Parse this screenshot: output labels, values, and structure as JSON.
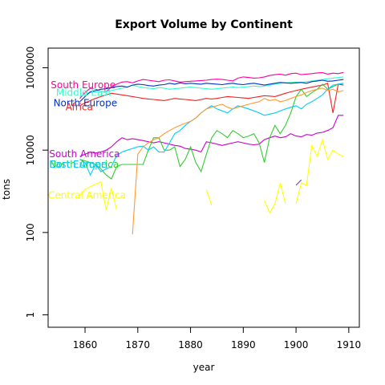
{
  "chart_data": {
    "type": "line",
    "title": "Export Volume by Continent",
    "xlabel": "year",
    "ylabel": "tons",
    "y_scale": "log",
    "xlim": [
      1853,
      1912
    ],
    "ylim": [
      0.5,
      3000000
    ],
    "x_ticks": [
      1860,
      1870,
      1880,
      1890,
      1900,
      1910
    ],
    "y_ticks": [
      {
        "value": 1,
        "label": "1"
      },
      {
        "value": 100,
        "label": "100"
      },
      {
        "value": 10000,
        "label": "10000"
      },
      {
        "value": 1000000,
        "label": "1000000"
      }
    ],
    "grid": false,
    "legend": "direct labels at left of each series",
    "series": [
      {
        "name": "South Europe",
        "color": "#FF0099",
        "label_year": 1853.5,
        "label_value": 380000,
        "x": [
          1859,
          1860,
          1861,
          1862,
          1863,
          1864,
          1865,
          1866,
          1867,
          1868,
          1869,
          1870,
          1871,
          1872,
          1873,
          1874,
          1875,
          1876,
          1877,
          1878,
          1879,
          1880,
          1881,
          1882,
          1883,
          1884,
          1885,
          1886,
          1887,
          1888,
          1889,
          1890,
          1891,
          1892,
          1893,
          1894,
          1895,
          1896,
          1897,
          1898,
          1899,
          1900,
          1901,
          1902,
          1903,
          1904,
          1905,
          1906,
          1907,
          1908,
          1909
        ],
        "y": [
          180000,
          250000,
          320000,
          300000,
          270000,
          260000,
          340000,
          400000,
          450000,
          460000,
          430000,
          480000,
          520000,
          500000,
          480000,
          460000,
          500000,
          510000,
          480000,
          450000,
          460000,
          470000,
          480000,
          490000,
          500000,
          520000,
          530000,
          520000,
          500000,
          480000,
          560000,
          600000,
          580000,
          560000,
          570000,
          600000,
          650000,
          680000,
          700000,
          660000,
          720000,
          740000,
          680000,
          700000,
          720000,
          750000,
          760000,
          700000,
          740000,
          720000,
          770000
        ]
      },
      {
        "name": "Middle East",
        "color": "#33FFCC",
        "label_year": 1854.5,
        "label_value": 250000,
        "x": [
          1859,
          1860,
          1861,
          1862,
          1863,
          1864,
          1865,
          1866,
          1867,
          1868,
          1869,
          1870,
          1871,
          1872,
          1873,
          1874,
          1875,
          1876,
          1877,
          1878,
          1879,
          1880,
          1881,
          1882,
          1883,
          1884,
          1885,
          1886,
          1887,
          1888,
          1889,
          1890,
          1891,
          1892,
          1893,
          1894,
          1895,
          1896,
          1897,
          1898,
          1899,
          1900,
          1901,
          1902,
          1903,
          1904,
          1905,
          1906,
          1907,
          1908,
          1909
        ],
        "y": [
          200000,
          230000,
          250000,
          260000,
          270000,
          260000,
          280000,
          300000,
          320000,
          340000,
          380000,
          350000,
          330000,
          320000,
          310000,
          330000,
          320000,
          300000,
          310000,
          320000,
          330000,
          340000,
          330000,
          320000,
          310000,
          300000,
          310000,
          320000,
          330000,
          340000,
          330000,
          340000,
          350000,
          360000,
          350000,
          360000,
          380000,
          400000,
          420000,
          430000,
          440000,
          450000,
          440000,
          460000,
          480000,
          500000,
          520000,
          540000,
          560000,
          580000,
          600000
        ]
      },
      {
        "name": "North Europe",
        "color": "#0033CC",
        "label_year": 1854,
        "label_value": 140000,
        "x": [
          1859,
          1860,
          1861,
          1862,
          1863,
          1864,
          1865,
          1866,
          1867,
          1868,
          1869,
          1870,
          1871,
          1872,
          1873,
          1874,
          1875,
          1876,
          1877,
          1878,
          1879,
          1880,
          1881,
          1882,
          1883,
          1884,
          1885,
          1886,
          1887,
          1888,
          1889,
          1890,
          1891,
          1892,
          1893,
          1894,
          1895,
          1896,
          1897,
          1898,
          1899,
          1900,
          1901,
          1902,
          1903,
          1904,
          1905,
          1906,
          1907,
          1908,
          1909
        ],
        "y": [
          150000,
          200000,
          260000,
          280000,
          300000,
          310000,
          330000,
          350000,
          360000,
          340000,
          380000,
          400000,
          390000,
          370000,
          360000,
          380000,
          390000,
          420000,
          400000,
          430000,
          410000,
          420000,
          410000,
          400000,
          420000,
          410000,
          400000,
          390000,
          410000,
          420000,
          400000,
          390000,
          410000,
          420000,
          400000,
          380000,
          400000,
          420000,
          440000,
          430000,
          420000,
          430000,
          440000,
          420000,
          460000,
          480000,
          500000,
          470000,
          480000,
          500000,
          520000
        ]
      },
      {
        "name": "Africa",
        "color": "#EE2222",
        "label_year": 1856.3,
        "label_value": 110000,
        "x": [
          1859,
          1860,
          1861,
          1862,
          1863,
          1864,
          1865,
          1866,
          1867,
          1868,
          1869,
          1870,
          1871,
          1872,
          1873,
          1874,
          1875,
          1876,
          1877,
          1878,
          1879,
          1880,
          1881,
          1882,
          1883,
          1884,
          1885,
          1886,
          1887,
          1888,
          1889,
          1890,
          1891,
          1892,
          1893,
          1894,
          1895,
          1896,
          1897,
          1898,
          1899,
          1900,
          1901,
          1902,
          1903,
          1904,
          1905,
          1906,
          1907,
          1908,
          1909
        ],
        "y": [
          120000,
          140000,
          160000,
          180000,
          200000,
          220000,
          240000,
          230000,
          220000,
          210000,
          200000,
          190000,
          180000,
          175000,
          170000,
          165000,
          160000,
          170000,
          180000,
          175000,
          170000,
          165000,
          160000,
          170000,
          180000,
          175000,
          180000,
          190000,
          200000,
          195000,
          190000,
          185000,
          180000,
          190000,
          200000,
          210000,
          205000,
          200000,
          220000,
          240000,
          260000,
          280000,
          300000,
          320000,
          340000,
          360000,
          380000,
          420000,
          80000,
          400000,
          380000
        ]
      },
      {
        "name": "South America",
        "color": "#CC00CC",
        "label_year": 1853.2,
        "label_value": 8000,
        "x": [
          1859,
          1860,
          1861,
          1862,
          1863,
          1864,
          1865,
          1866,
          1867,
          1868,
          1869,
          1870,
          1871,
          1872,
          1873,
          1874,
          1875,
          1876,
          1877,
          1878,
          1879,
          1880,
          1881,
          1882,
          1883,
          1884,
          1885,
          1886,
          1887,
          1888,
          1889,
          1890,
          1891,
          1892,
          1893,
          1894,
          1895,
          1896,
          1897,
          1898,
          1899,
          1900,
          1901,
          1902,
          1903,
          1904,
          1905,
          1906,
          1907,
          1908,
          1909
        ],
        "y": [
          7000,
          8000,
          9000,
          8500,
          9000,
          10000,
          12000,
          16000,
          20000,
          18000,
          19000,
          18000,
          17000,
          16000,
          15000,
          16000,
          15000,
          14000,
          13000,
          12500,
          11000,
          10500,
          10000,
          9000,
          16000,
          15000,
          14000,
          13000,
          14000,
          15000,
          16000,
          15000,
          14000,
          13500,
          14000,
          18000,
          20000,
          22000,
          20000,
          21000,
          25000,
          22000,
          21000,
          24000,
          23000,
          26000,
          27000,
          30000,
          35000,
          70000,
          70000
        ]
      },
      {
        "name": "North America",
        "color": "#33CC33",
        "label_year": 1853.2,
        "label_value": 4500,
        "x": [
          1859,
          1860,
          1861,
          1862,
          1863,
          1864,
          1865,
          1866,
          1867,
          1868,
          1869,
          1870,
          1871,
          1872,
          1873,
          1874,
          1875,
          1876,
          1877,
          1878,
          1879,
          1880,
          1881,
          1882,
          1883,
          1884,
          1885,
          1886,
          1887,
          1888,
          1889,
          1890,
          1891,
          1892,
          1893,
          1894,
          1895,
          1896,
          1897,
          1898,
          1899,
          1900,
          1901,
          1902,
          1903,
          1904,
          1905,
          1906,
          1907,
          1908,
          1909
        ],
        "y": [
          6000,
          5500,
          5000,
          4500,
          3500,
          2500,
          2000,
          4000,
          4500,
          4500,
          4500,
          4500,
          4500,
          10000,
          20000,
          20000,
          10000,
          10000,
          12000,
          4000,
          6000,
          12000,
          5000,
          3000,
          8000,
          20000,
          30000,
          25000,
          20000,
          30000,
          25000,
          20000,
          22000,
          25000,
          15000,
          5000,
          20000,
          40000,
          25000,
          40000,
          80000,
          200000,
          300000,
          200000,
          250000,
          300000,
          400000,
          300000,
          350000,
          400000,
          420000
        ]
      },
      {
        "name": "East Europe",
        "color": "#00CCFF",
        "label_year": 1853.2,
        "label_value": 4500,
        "x": [
          1859,
          1860,
          1861,
          1862,
          1863,
          1864,
          1865,
          1866,
          1867,
          1868,
          1869,
          1870,
          1871,
          1872,
          1873,
          1874,
          1875,
          1876,
          1877,
          1878,
          1879,
          1880,
          1881,
          1882,
          1883,
          1884,
          1885,
          1886,
          1887,
          1888,
          1889,
          1890,
          1891,
          1892,
          1893,
          1894,
          1895,
          1896,
          1897,
          1898,
          1899,
          1900,
          1901,
          1902,
          1903,
          1904,
          1905,
          1906,
          1907,
          1908,
          1909
        ],
        "y": [
          6000,
          5000,
          2500,
          4500,
          3000,
          3500,
          4000,
          7500,
          9000,
          10000,
          11000,
          12000,
          12500,
          10000,
          12000,
          9000,
          9000,
          15000,
          25000,
          30000,
          40000,
          50000,
          60000,
          80000,
          100000,
          120000,
          100000,
          90000,
          80000,
          100000,
          120000,
          110000,
          100000,
          90000,
          80000,
          70000,
          75000,
          80000,
          90000,
          100000,
          110000,
          120000,
          100000,
          130000,
          150000,
          180000,
          220000,
          300000,
          380000,
          400000,
          420000
        ]
      },
      {
        "name": "",
        "color": "#FF9933",
        "x": [
          1869,
          1870,
          1871,
          1872,
          1873,
          1874,
          1875,
          1876,
          1877,
          1878,
          1879,
          1880,
          1881,
          1882,
          1883,
          1884,
          1885,
          1886,
          1887,
          1888,
          1889,
          1890,
          1891,
          1892,
          1893,
          1894,
          1895,
          1896,
          1897,
          1898,
          1899,
          1900,
          1901,
          1902,
          1903,
          1904,
          1905,
          1906,
          1907,
          1908,
          1909
        ],
        "y": [
          90,
          8000,
          12000,
          15000,
          18000,
          20000,
          25000,
          30000,
          35000,
          40000,
          45000,
          50000,
          60000,
          80000,
          100000,
          110000,
          120000,
          130000,
          110000,
          100000,
          110000,
          120000,
          130000,
          140000,
          150000,
          180000,
          160000,
          170000,
          150000,
          160000,
          180000,
          200000,
          220000,
          250000,
          280000,
          300000,
          320000,
          280000,
          300000,
          260000,
          280000
        ]
      },
      {
        "name": "Central America",
        "color": "#FFFF00",
        "label_year": 1853,
        "label_value": 800,
        "x": [
          1859,
          1860,
          1861,
          1862,
          1863,
          1864,
          1865,
          1866,
          null,
          1883,
          1884,
          null,
          1894,
          1895,
          1896,
          1897,
          1898,
          null,
          1900,
          1901,
          1902,
          1903,
          1904,
          1905,
          1906,
          1907,
          1908,
          1909
        ],
        "y": [
          800,
          1100,
          1300,
          1500,
          1700,
          350,
          1200,
          350,
          null,
          1100,
          450,
          null,
          600,
          300,
          500,
          1600,
          500,
          null,
          500,
          1600,
          1400,
          13000,
          7000,
          18000,
          6000,
          10000,
          8000,
          7000
        ]
      },
      {
        "name": "",
        "color": "#6633FF",
        "x": [
          1900,
          1901
        ],
        "y": [
          1400,
          1900
        ]
      }
    ]
  }
}
